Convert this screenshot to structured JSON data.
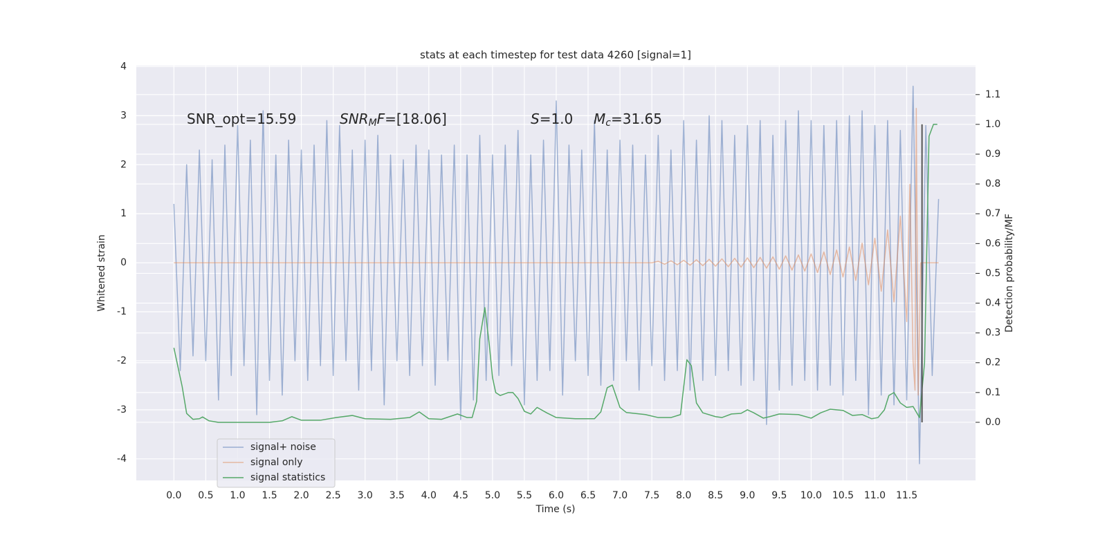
{
  "chart_data": {
    "type": "line",
    "title": "stats at each timestep for test data 4260 [signal=1]",
    "x_label": "Time (s)",
    "y_label": "Whitened strain",
    "y2_label": "Detection probability/MF",
    "xlim": [
      -0.59,
      12.58
    ],
    "ylim": [
      -4.44,
      4.02
    ],
    "y2lim": [
      -0.195,
      1.197
    ],
    "xticks": [
      {
        "value": 0,
        "label": "0.0"
      },
      0.5,
      {
        "value": 1,
        "label": "1.0"
      },
      1.5,
      {
        "value": 2,
        "label": "2.0"
      },
      2.5,
      {
        "value": 3,
        "label": "3.0"
      },
      3.5,
      {
        "value": 4,
        "label": "4.0"
      },
      4.5,
      {
        "value": 5,
        "label": "5.0"
      },
      5.5,
      {
        "value": 6,
        "label": "6.0"
      },
      6.5,
      {
        "value": 7,
        "label": "7.0"
      },
      7.5,
      {
        "value": 8,
        "label": "8.0"
      },
      8.5,
      {
        "value": 9,
        "label": "9.0"
      },
      9.5,
      {
        "value": 10,
        "label": "10.0"
      },
      10.5,
      {
        "value": 11,
        "label": "11.0"
      },
      11.5
    ],
    "yticks": [
      -4,
      -3,
      -2,
      -1,
      0,
      1,
      2,
      3,
      4
    ],
    "y2ticks": [
      {
        "value": 0,
        "label": "0.0"
      },
      0.1,
      0.2,
      0.3,
      0.4,
      0.5,
      0.6,
      0.7,
      0.8,
      0.9,
      {
        "value": 1,
        "label": "1.0"
      },
      1.1
    ],
    "grid": true,
    "legend_loc": "lower left",
    "annotations": [
      {
        "runs": [
          {
            "text": "SNR_opt=15.59",
            "style": "normal"
          }
        ]
      },
      {
        "runs": [
          {
            "text": "SNR",
            "style": "italic"
          },
          {
            "text": "M",
            "style": "sub"
          },
          {
            "text": "F",
            "style": "italic"
          },
          {
            "text": "=[18.06]",
            "style": "normal"
          }
        ]
      },
      {
        "runs": [
          {
            "text": "S",
            "style": "italic"
          },
          {
            "text": "=1.0",
            "style": "normal"
          }
        ]
      },
      {
        "runs": [
          {
            "text": "M",
            "style": "italic"
          },
          {
            "text": "c",
            "style": "sub"
          },
          {
            "text": "=31.65",
            "style": "normal"
          }
        ]
      }
    ],
    "vlines": [
      {
        "x": 11.74,
        "ymin": 0,
        "ymax": 1,
        "axis": "y2",
        "color": "#555555"
      }
    ],
    "series": [
      {
        "name": "signal+ noise",
        "color": "#4c72b0",
        "axis": "y",
        "x": [
          0,
          0.1,
          0.2,
          0.3,
          0.4,
          0.5,
          0.6,
          0.7,
          0.8,
          0.9,
          1,
          1.1,
          1.2,
          1.3,
          1.4,
          1.5,
          1.6,
          1.7,
          1.8,
          1.9,
          2,
          2.1,
          2.2,
          2.3,
          2.4,
          2.5,
          2.6,
          2.7,
          2.8,
          2.9,
          3,
          3.1,
          3.2,
          3.3,
          3.4,
          3.5,
          3.6,
          3.7,
          3.8,
          3.9,
          4,
          4.1,
          4.2,
          4.3,
          4.4,
          4.5,
          4.6,
          4.7,
          4.8,
          4.9,
          5,
          5.1,
          5.2,
          5.3,
          5.4,
          5.5,
          5.6,
          5.7,
          5.8,
          5.9,
          6,
          6.1,
          6.2,
          6.3,
          6.4,
          6.5,
          6.6,
          6.7,
          6.8,
          6.9,
          7,
          7.1,
          7.2,
          7.3,
          7.4,
          7.5,
          7.6,
          7.7,
          7.8,
          7.9,
          8,
          8.1,
          8.2,
          8.3,
          8.4,
          8.5,
          8.6,
          8.7,
          8.8,
          8.9,
          9,
          9.1,
          9.2,
          9.3,
          9.4,
          9.5,
          9.6,
          9.7,
          9.8,
          9.9,
          10,
          10.1,
          10.2,
          10.3,
          10.4,
          10.5,
          10.6,
          10.7,
          10.8,
          10.9,
          11,
          11.1,
          11.2,
          11.3,
          11.4,
          11.5,
          11.6,
          11.7,
          11.8,
          11.9,
          12
        ],
        "values": [
          1.2,
          -2.2,
          2.0,
          -1.9,
          2.3,
          -2.0,
          2.1,
          -2.8,
          2.4,
          -2.3,
          2.8,
          -2.1,
          2.5,
          -3.1,
          3.1,
          -2.4,
          2.2,
          -2.7,
          2.5,
          -2.0,
          2.3,
          -2.4,
          2.4,
          -2.1,
          2.9,
          -2.3,
          2.8,
          -2.0,
          2.3,
          -2.6,
          2.5,
          -2.2,
          2.6,
          -2.9,
          2.2,
          -2.0,
          2.1,
          -2.3,
          2.4,
          -2.1,
          2.3,
          -2.5,
          2.2,
          -2.0,
          2.4,
          -3.2,
          2.2,
          -2.8,
          2.6,
          -2.4,
          2.2,
          -2.3,
          2.4,
          -2.1,
          2.7,
          -2.9,
          2.2,
          -2.4,
          2.5,
          -2.2,
          3.3,
          -2.7,
          2.4,
          -2.0,
          2.3,
          -2.3,
          2.9,
          -2.5,
          2.3,
          -2.4,
          2.5,
          -2.0,
          2.4,
          -2.6,
          2.2,
          -2.1,
          2.6,
          -2.4,
          2.3,
          -2.2,
          2.9,
          -2.6,
          2.5,
          -2.4,
          3.0,
          -2.3,
          2.9,
          -2.2,
          2.6,
          -2.5,
          2.8,
          -2.4,
          2.9,
          -3.3,
          2.6,
          -2.6,
          2.9,
          -2.5,
          3.1,
          -2.4,
          2.9,
          -2.6,
          2.8,
          -2.5,
          2.9,
          -2.7,
          3.0,
          -2.4,
          3.1,
          -3.1,
          2.8,
          -2.7,
          2.9,
          -2.9,
          2.7,
          -2.8,
          3.6,
          -4.1,
          2.8,
          -2.3,
          1.3
        ]
      },
      {
        "name": "signal only",
        "color": "#dd8452",
        "axis": "y",
        "x": [
          0,
          7.5,
          7.6,
          7.7,
          7.8,
          7.9,
          8,
          8.1,
          8.2,
          8.3,
          8.4,
          8.5,
          8.6,
          8.7,
          8.8,
          8.9,
          9,
          9.1,
          9.2,
          9.3,
          9.4,
          9.5,
          9.6,
          9.7,
          9.8,
          9.9,
          10,
          10.1,
          10.2,
          10.3,
          10.4,
          10.5,
          10.6,
          10.7,
          10.8,
          10.9,
          11,
          11.1,
          11.2,
          11.3,
          11.4,
          11.5,
          11.55,
          11.6,
          11.63,
          11.65,
          11.68,
          11.72,
          12
        ],
        "values": [
          0,
          0,
          0.03,
          -0.03,
          0.04,
          -0.04,
          0.05,
          -0.05,
          0.06,
          -0.06,
          0.07,
          -0.07,
          0.08,
          -0.08,
          0.09,
          -0.09,
          0.1,
          -0.1,
          0.11,
          -0.11,
          0.12,
          -0.13,
          0.14,
          -0.15,
          0.16,
          -0.17,
          0.18,
          -0.2,
          0.22,
          -0.24,
          0.26,
          -0.29,
          0.32,
          -0.36,
          0.4,
          -0.45,
          0.5,
          -0.58,
          0.67,
          -0.8,
          0.95,
          -1.2,
          1.6,
          -2.0,
          -2.6,
          3.15,
          -2.7,
          0,
          0
        ]
      },
      {
        "name": "signal statistics",
        "color": "#55a868",
        "axis": "y2",
        "x": [
          0,
          0.13,
          0.2,
          0.3,
          0.4,
          0.45,
          0.55,
          0.7,
          1,
          1.5,
          1.7,
          1.85,
          2,
          2.3,
          2.55,
          2.8,
          3,
          3.4,
          3.7,
          3.85,
          4,
          4.2,
          4.45,
          4.6,
          4.68,
          4.75,
          4.8,
          4.88,
          4.95,
          5,
          5.05,
          5.12,
          5.25,
          5.32,
          5.4,
          5.5,
          5.6,
          5.7,
          5.85,
          6,
          6.3,
          6.6,
          6.7,
          6.8,
          6.88,
          7,
          7.1,
          7.4,
          7.6,
          7.8,
          7.95,
          8.05,
          8.12,
          8.2,
          8.3,
          8.5,
          8.6,
          8.75,
          8.9,
          9,
          9.1,
          9.25,
          9.35,
          9.5,
          9.8,
          10,
          10.15,
          10.3,
          10.5,
          10.65,
          10.8,
          10.95,
          11.05,
          11.15,
          11.22,
          11.3,
          11.4,
          11.5,
          11.6,
          11.7,
          11.78,
          11.85,
          11.92,
          11.98
        ],
        "values": [
          0.25,
          0.12,
          0.03,
          0.01,
          0.012,
          0.018,
          0.005,
          0,
          0,
          0,
          0.005,
          0.019,
          0.007,
          0.007,
          0.016,
          0.023,
          0.012,
          0.01,
          0.016,
          0.035,
          0.012,
          0.01,
          0.028,
          0.016,
          0.016,
          0.07,
          0.28,
          0.385,
          0.26,
          0.15,
          0.1,
          0.09,
          0.1,
          0.1,
          0.08,
          0.037,
          0.028,
          0.05,
          0.032,
          0.016,
          0.012,
          0.012,
          0.035,
          0.116,
          0.125,
          0.05,
          0.033,
          0.026,
          0.016,
          0.016,
          0.026,
          0.21,
          0.19,
          0.065,
          0.032,
          0.019,
          0.016,
          0.028,
          0.03,
          0.042,
          0.032,
          0.014,
          0.019,
          0.028,
          0.026,
          0.014,
          0.032,
          0.044,
          0.04,
          0.023,
          0.026,
          0.012,
          0.016,
          0.042,
          0.09,
          0.1,
          0.065,
          0.05,
          0.053,
          0.016,
          0.2,
          0.96,
          1,
          1
        ]
      }
    ]
  }
}
